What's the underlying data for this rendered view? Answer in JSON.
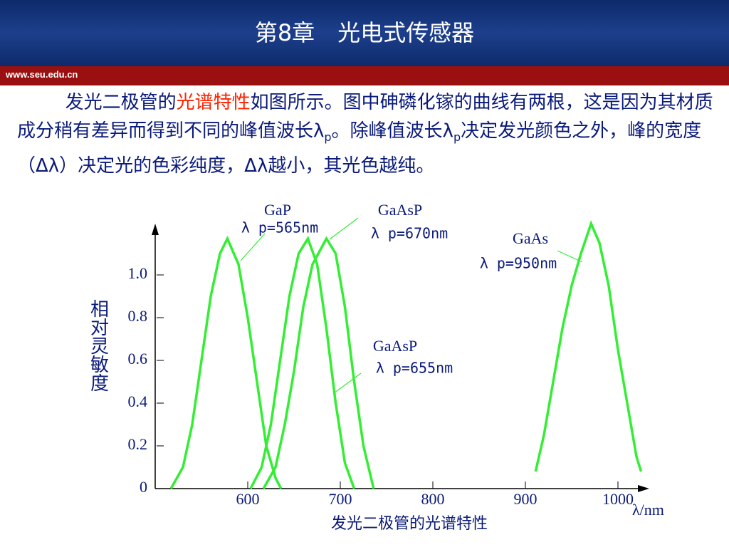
{
  "header": {
    "title": "第8章　光电式传感器",
    "site": "www.seu.edu.cn"
  },
  "paragraph": [
    "发光二极管的",
    "光谱特性",
    "如图所示。图中砷磷化镓的曲线有两根，这是因为其材质成分稍有差异而得到不同的峰值波长λ",
    "p",
    "。除峰值波长λ",
    "p",
    "决定发光颜色之外，峰的宽度（Δλ）决定光的色彩纯度，Δλ越小，其光色越纯。"
  ],
  "chart_data": {
    "type": "line",
    "title": "发光二极管的光谱特性",
    "x_label": "λ/nm",
    "y_label": "相对灵敏度",
    "xlim": [
      500,
      1030
    ],
    "ylim": [
      0,
      1.25
    ],
    "xticks": [
      600,
      700,
      800,
      900,
      1000
    ],
    "yticks": [
      0,
      0.2,
      0.4,
      0.6,
      0.8,
      {
        "value": 1,
        "label": "1.0"
      }
    ],
    "series": [
      {
        "name": "GaP",
        "peak_label": "λ p=565nm",
        "color": "#33ee33",
        "x": [
          517,
          530,
          540,
          550,
          560,
          570,
          578,
          590,
          600,
          610,
          620,
          630,
          636
        ],
        "values": [
          0,
          0.1,
          0.3,
          0.6,
          0.9,
          1.1,
          1.17,
          1.05,
          0.8,
          0.5,
          0.2,
          0.05,
          0
        ]
      },
      {
        "name": "GaAsP",
        "peak_label": "λ p=655nm",
        "color": "#33ee33",
        "x": [
          603,
          615,
          625,
          635,
          645,
          655,
          665,
          675,
          685,
          695,
          705,
          715
        ],
        "values": [
          0,
          0.1,
          0.3,
          0.6,
          0.9,
          1.1,
          1.17,
          1.05,
          0.75,
          0.4,
          0.12,
          0
        ]
      },
      {
        "name": "GaAsP",
        "peak_label": "λ p=670nm",
        "color": "#33ee33",
        "x": [
          617,
          630,
          640,
          650,
          660,
          670,
          685,
          695,
          705,
          715,
          725,
          736
        ],
        "values": [
          0,
          0.1,
          0.3,
          0.55,
          0.85,
          1.05,
          1.17,
          1.1,
          0.85,
          0.5,
          0.2,
          0
        ]
      },
      {
        "name": "GaAs",
        "peak_label": "λ p=950nm",
        "color": "#33ee33",
        "x": [
          911,
          920,
          930,
          940,
          950,
          960,
          971,
          980,
          990,
          1000,
          1010,
          1020,
          1025
        ],
        "values": [
          0.08,
          0.25,
          0.5,
          0.75,
          0.95,
          1.1,
          1.24,
          1.15,
          0.95,
          0.65,
          0.4,
          0.15,
          0.08
        ]
      }
    ]
  }
}
